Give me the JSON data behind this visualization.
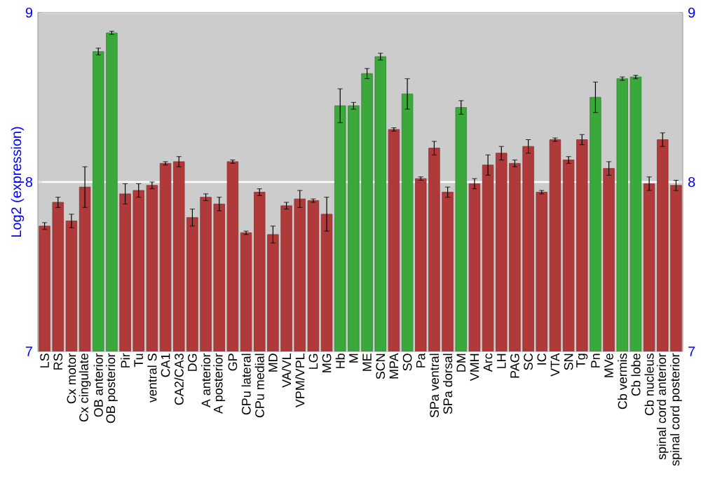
{
  "chart_data": {
    "type": "bar",
    "ylabel": "Log2 (expression)",
    "categories": [
      "LS",
      "RS",
      "Cx motor",
      "Cx cingulate",
      "OB anterior",
      "OB posterior",
      "Pir",
      "Tu",
      "ventral S",
      "CA1",
      "CA2/CA3",
      "DG",
      "A anterior",
      "A posterior",
      "GP",
      "CPu lateral",
      "CPu medial",
      "MD",
      "VA/VL",
      "VPM/VPL",
      "LG",
      "MG",
      "Hb",
      "M",
      "ME",
      "SCN",
      "MPA",
      "SO",
      "Pa",
      "SPa ventral",
      "SPa dorsal",
      "DM",
      "VMH",
      "Arc",
      "LH",
      "PAG",
      "SC",
      "IC",
      "VTA",
      "SN",
      "Tg",
      "Pn",
      "MVe",
      "Cb vermis",
      "Cb lobe",
      "Cb nucleus",
      "spinal cord anterior",
      "spinal cord posterior"
    ],
    "values": [
      7.74,
      7.88,
      7.77,
      7.97,
      8.77,
      8.88,
      7.93,
      7.95,
      7.98,
      8.11,
      8.12,
      7.79,
      7.91,
      7.87,
      8.12,
      7.7,
      7.94,
      7.69,
      7.86,
      7.9,
      7.89,
      7.81,
      8.45,
      8.45,
      8.64,
      8.74,
      8.31,
      8.52,
      8.02,
      8.2,
      7.94,
      8.44,
      7.99,
      8.1,
      8.17,
      8.11,
      8.21,
      7.94,
      8.25,
      8.13,
      8.25,
      8.5,
      8.08,
      8.61,
      8.62,
      7.99,
      8.25,
      7.98
    ],
    "errors": [
      0.02,
      0.03,
      0.04,
      0.12,
      0.02,
      0.01,
      0.06,
      0.04,
      0.02,
      0.01,
      0.03,
      0.05,
      0.02,
      0.04,
      0.01,
      0.01,
      0.02,
      0.05,
      0.02,
      0.05,
      0.01,
      0.1,
      0.1,
      0.02,
      0.03,
      0.02,
      0.01,
      0.09,
      0.01,
      0.04,
      0.03,
      0.04,
      0.03,
      0.06,
      0.04,
      0.02,
      0.04,
      0.01,
      0.01,
      0.02,
      0.03,
      0.09,
      0.04,
      0.01,
      0.01,
      0.04,
      0.04,
      0.03
    ],
    "colors": [
      "#b03a3a",
      "#b03a3a",
      "#b03a3a",
      "#b03a3a",
      "#3aa83a",
      "#3aa83a",
      "#b03a3a",
      "#b03a3a",
      "#b03a3a",
      "#b03a3a",
      "#b03a3a",
      "#b03a3a",
      "#b03a3a",
      "#b03a3a",
      "#b03a3a",
      "#b03a3a",
      "#b03a3a",
      "#b03a3a",
      "#b03a3a",
      "#b03a3a",
      "#b03a3a",
      "#b03a3a",
      "#3aa83a",
      "#3aa83a",
      "#3aa83a",
      "#3aa83a",
      "#b03a3a",
      "#3aa83a",
      "#b03a3a",
      "#b03a3a",
      "#b03a3a",
      "#3aa83a",
      "#b03a3a",
      "#b03a3a",
      "#b03a3a",
      "#b03a3a",
      "#b03a3a",
      "#b03a3a",
      "#b03a3a",
      "#b03a3a",
      "#b03a3a",
      "#3aa83a",
      "#b03a3a",
      "#3aa83a",
      "#3aa83a",
      "#b03a3a",
      "#b03a3a",
      "#b03a3a"
    ],
    "ylim": [
      7,
      9
    ],
    "yticks": [
      7,
      8,
      9
    ],
    "y2lim": [
      7,
      9
    ],
    "y2ticks": [
      7,
      8,
      9
    ],
    "grid": "y"
  }
}
